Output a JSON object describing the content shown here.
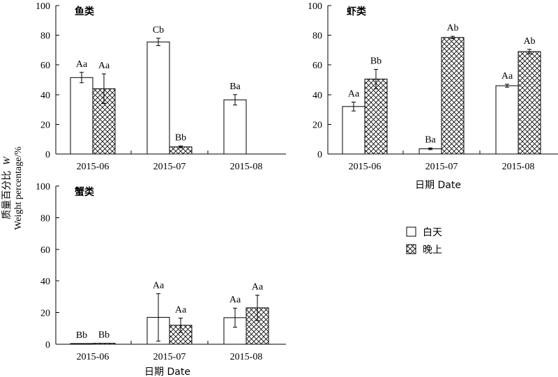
{
  "y_axis_label_cn": "质量百分比",
  "y_axis_label_sym": "W",
  "y_axis_label_en": "Weight percentage/%",
  "x_axis_label": "日期 Date",
  "legend": [
    {
      "label": "白天",
      "pattern": "plain"
    },
    {
      "label": "晚上",
      "pattern": "crosshatch"
    }
  ],
  "chart_data": [
    {
      "type": "bar",
      "title": "鱼类",
      "categories": [
        "2015-06",
        "2015-07",
        "2015-08"
      ],
      "ylim": [
        0,
        100
      ],
      "yticks": [
        0,
        20,
        40,
        60,
        80,
        100
      ],
      "xlabel": "",
      "series": [
        {
          "name": "白天",
          "values": [
            51.5,
            75.5,
            36.5
          ],
          "errors": [
            3.5,
            2.5,
            3.5
          ],
          "labels": [
            "Aa",
            "Cb",
            "Ba"
          ]
        },
        {
          "name": "晚上",
          "values": [
            44.0,
            4.8,
            null
          ],
          "errors": [
            10.0,
            0.6,
            null
          ],
          "labels": [
            "Aa",
            "Bb",
            null
          ]
        }
      ]
    },
    {
      "type": "bar",
      "title": "虾类",
      "categories": [
        "2015-06",
        "2015-07",
        "2015-08"
      ],
      "ylim": [
        0,
        100
      ],
      "yticks": [
        0,
        20,
        40,
        60,
        80,
        100
      ],
      "xlabel": "日期 Date",
      "series": [
        {
          "name": "白天",
          "values": [
            32.0,
            3.5,
            46.0
          ],
          "errors": [
            3.0,
            0.6,
            1.0
          ],
          "labels": [
            "Aa",
            "Ba",
            "Aa"
          ]
        },
        {
          "name": "晚上",
          "values": [
            50.5,
            78.5,
            69.0
          ],
          "errors": [
            6.5,
            0.8,
            1.5
          ],
          "labels": [
            "Bb",
            "Ab",
            "Ab"
          ]
        }
      ]
    },
    {
      "type": "bar",
      "title": "蟹类",
      "categories": [
        "2015-06",
        "2015-07",
        "2015-08"
      ],
      "ylim": [
        0,
        100
      ],
      "yticks": [
        0,
        20,
        40,
        60,
        80,
        100
      ],
      "xlabel": "日期 Date",
      "series": [
        {
          "name": "白天",
          "values": [
            0.4,
            17.0,
            16.8
          ],
          "errors": [
            0,
            15.0,
            6.0
          ],
          "labels": [
            "Bb",
            "Aa",
            "Aa"
          ]
        },
        {
          "name": "晚上",
          "values": [
            0.6,
            12.0,
            23.0
          ],
          "errors": [
            0,
            4.5,
            8.0
          ],
          "labels": [
            "Bb",
            "Aa",
            "Aa"
          ]
        }
      ]
    }
  ]
}
